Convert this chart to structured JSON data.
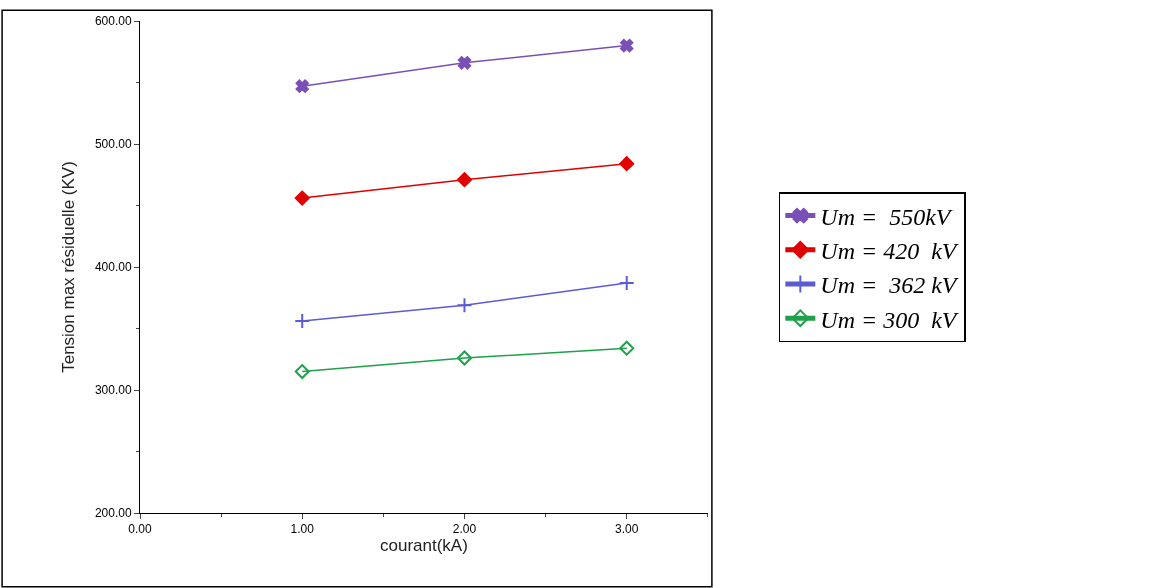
{
  "chart_data": {
    "type": "line",
    "xlabel": "courant(kA)",
    "ylabel": "Tension max résiduelle (KV)",
    "x": [
      1,
      2,
      3
    ],
    "series": [
      {
        "name": "Um =  550kV",
        "color": "#7b4fb8",
        "marker": "x",
        "values": [
          547,
          566,
          580
        ]
      },
      {
        "name": "Um = 420  kV",
        "color": "#e00000",
        "marker": "diamond",
        "values": [
          456,
          471,
          484
        ]
      },
      {
        "name": "Um =  362 kV",
        "color": "#5b5bd6",
        "marker": "cross",
        "values": [
          356,
          369,
          387
        ]
      },
      {
        "name": "Um = 300  kV",
        "color": "#1fa04a",
        "marker": "diamond-open",
        "values": [
          315,
          326,
          334
        ]
      }
    ],
    "xlim": [
      0,
      3.5
    ],
    "xticks": [
      {
        "value": 0,
        "label": "0.00"
      },
      {
        "value": 1,
        "label": "1.00"
      },
      {
        "value": 2,
        "label": "2.00"
      },
      {
        "value": 3,
        "label": "3.00"
      }
    ],
    "ylim": [
      200,
      600
    ],
    "yticks": [
      {
        "value": 200,
        "label": "200.00"
      },
      {
        "value": 300,
        "label": "300.00"
      },
      {
        "value": 400,
        "label": "400.00"
      },
      {
        "value": 500,
        "label": "500.00"
      },
      {
        "value": 600,
        "label": "600.00"
      }
    ],
    "legend": "right",
    "line_style": "solid"
  }
}
